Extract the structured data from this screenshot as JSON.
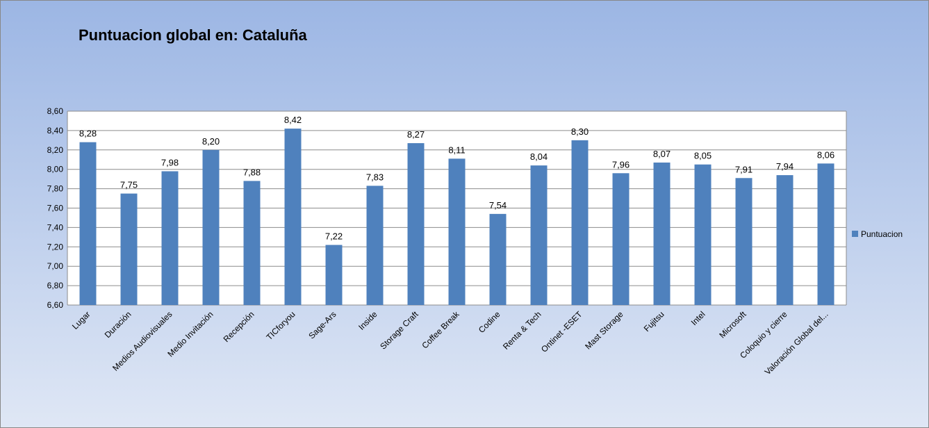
{
  "chart_data": {
    "type": "bar",
    "title": "Puntuacion global en: Cataluña",
    "categories": [
      "Lugar",
      "Duración",
      "Medios Audiovisuales",
      "Medio Invitación",
      "Recepción",
      "TICforyou",
      "Sage-Ars",
      "Inside",
      "Storage Craft",
      "Coffee Break",
      "Codine",
      "Renta & Tech",
      "Ontinet -ESET",
      "Mast Storage",
      "Fujitsu",
      "Intel",
      "Microsoft",
      "Coloquio y cierre",
      "Valoración Global del..."
    ],
    "series": [
      {
        "name": "Puntuacion",
        "color": "#4f81bd",
        "values": [
          8.28,
          7.75,
          7.98,
          8.2,
          7.88,
          8.42,
          7.22,
          7.83,
          8.27,
          8.11,
          7.54,
          8.04,
          8.3,
          7.96,
          8.07,
          8.05,
          7.91,
          7.94,
          8.06
        ],
        "value_labels": [
          "8,28",
          "7,75",
          "7,98",
          "8,20",
          "7,88",
          "8,42",
          "7,22",
          "7,83",
          "8,27",
          "8,11",
          "7,54",
          "8,04",
          "8,30",
          "7,96",
          "8,07",
          "8,05",
          "7,91",
          "7,94",
          "8,06"
        ]
      }
    ],
    "ylim": [
      6.6,
      8.6
    ],
    "yticks": [
      {
        "value": 6.6,
        "label": "6,60"
      },
      {
        "value": 6.8,
        "label": "6,80"
      },
      {
        "value": 7.0,
        "label": "7,00"
      },
      {
        "value": 7.2,
        "label": "7,20"
      },
      {
        "value": 7.4,
        "label": "7,40"
      },
      {
        "value": 7.6,
        "label": "7,60"
      },
      {
        "value": 7.8,
        "label": "7,80"
      },
      {
        "value": 8.0,
        "label": "8,00"
      },
      {
        "value": 8.2,
        "label": "8,20"
      },
      {
        "value": 8.4,
        "label": "8,40"
      },
      {
        "value": 8.6,
        "label": "8,60"
      }
    ],
    "grid": true,
    "legend": "right"
  }
}
